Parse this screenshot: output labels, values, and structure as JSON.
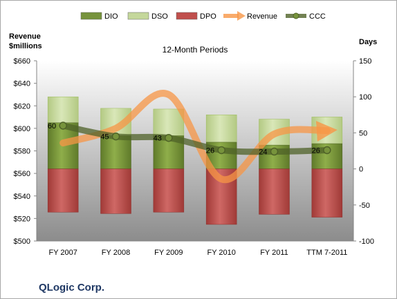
{
  "chart_data": {
    "type": "bar",
    "title": "12-Month Periods",
    "company": "QLogic Corp.",
    "left_axis_label": "Revenue\n$millions",
    "right_axis_label": "Days",
    "categories": [
      "FY 2007",
      "FY 2008",
      "FY 2009",
      "FY 2010",
      "FY 2011",
      "TTM 7-2011"
    ],
    "left_axis": {
      "min": 500,
      "max": 660,
      "step": 20,
      "format": "$"
    },
    "right_axis": {
      "min": -100,
      "max": 150,
      "step": 50
    },
    "legend": {
      "position": "top",
      "items": [
        {
          "name": "DIO",
          "kind": "bar",
          "color": "#77933c"
        },
        {
          "name": "DSO",
          "kind": "bar",
          "color": "#c4d79b"
        },
        {
          "name": "DPO",
          "kind": "bar",
          "color": "#c0504d"
        },
        {
          "name": "Revenue",
          "kind": "arrow",
          "color": "#f79646"
        },
        {
          "name": "CCC",
          "kind": "line",
          "color": "#4f6228"
        }
      ]
    },
    "series": [
      {
        "name": "DIO",
        "axis": "right",
        "values": [
          64,
          46,
          46,
          37,
          33,
          35
        ]
      },
      {
        "name": "DSO",
        "axis": "right",
        "values": [
          36,
          38,
          37,
          38,
          36,
          37
        ]
      },
      {
        "name": "DPO",
        "axis": "right",
        "values": [
          -60,
          -62,
          -60,
          -77,
          -63,
          -67
        ]
      },
      {
        "name": "Revenue",
        "axis": "left",
        "values": [
          587,
          600,
          630,
          555,
          595,
          598
        ]
      },
      {
        "name": "CCC",
        "axis": "right",
        "values": [
          60,
          45,
          43,
          26,
          24,
          26
        ],
        "labels": [
          "60",
          "45",
          "43",
          "26",
          "24",
          "26"
        ]
      }
    ]
  }
}
